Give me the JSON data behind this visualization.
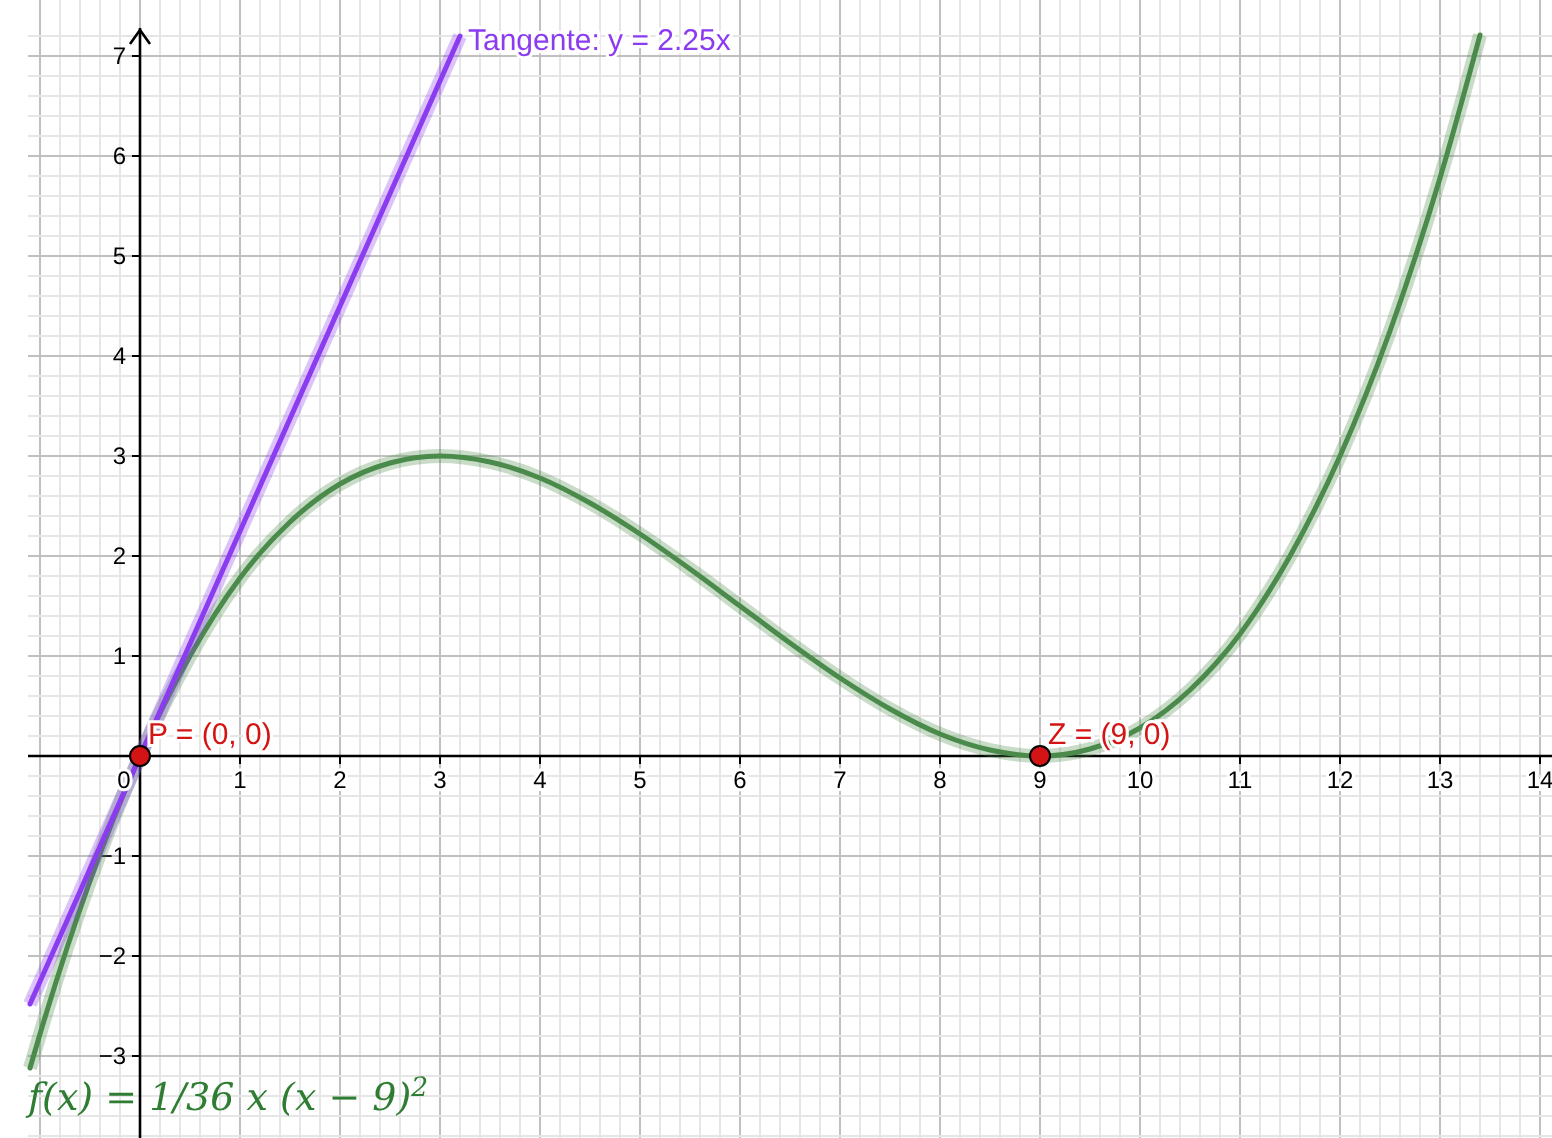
{
  "chart_data": {
    "type": "line",
    "xlim": [
      -1.12,
      14.12
    ],
    "ylim": [
      -3.82,
      7.28
    ],
    "xticks": [
      0,
      1,
      2,
      3,
      4,
      5,
      6,
      7,
      8,
      9,
      10,
      11,
      12,
      13,
      14
    ],
    "yticks": [
      -3,
      -2,
      -1,
      1,
      2,
      3,
      4,
      5,
      6,
      7
    ],
    "grid": true,
    "series": [
      {
        "color": "#4a8a4a",
        "x": [
          -1.1,
          -1,
          -0.5,
          0,
          0.5,
          1,
          1.5,
          2,
          2.5,
          3,
          3.5,
          4,
          4.5,
          5,
          5.5,
          6,
          6.5,
          7,
          7.5,
          8,
          8.5,
          9,
          9.5,
          10,
          10.5,
          11,
          11.5,
          12,
          12.5,
          13,
          13.4
        ],
        "values": [
          -3.12,
          -2.78,
          -1.25,
          0,
          1.0,
          1.78,
          2.34,
          2.72,
          2.93,
          3,
          2.94,
          2.78,
          2.53,
          2.22,
          1.87,
          1.5,
          1.13,
          0.78,
          0.47,
          0.22,
          0.06,
          0,
          0.07,
          0.28,
          0.66,
          1.22,
          2.0,
          3,
          4.25,
          5.78,
          7.21
        ]
      },
      {
        "color": "#8c3cf0",
        "x": [
          -1.1,
          3.2
        ],
        "values": [
          -2.48,
          7.2
        ]
      },
      {
        "type": "scatter",
        "color": "#d41414",
        "marker": "circle",
        "x": [
          0,
          9
        ],
        "values": [
          0,
          0
        ]
      }
    ],
    "annotations": [
      {
        "text": "Tangente: y = 2.25x",
        "x": 3.2,
        "y": 7.2
      },
      {
        "text": "P = (0, 0)",
        "x": 0,
        "y": 0
      },
      {
        "text": "Z = (9, 0)",
        "x": 9,
        "y": 0
      },
      "f(x) = 1/36 x (x − 9)$^{2}$"
    ]
  }
}
